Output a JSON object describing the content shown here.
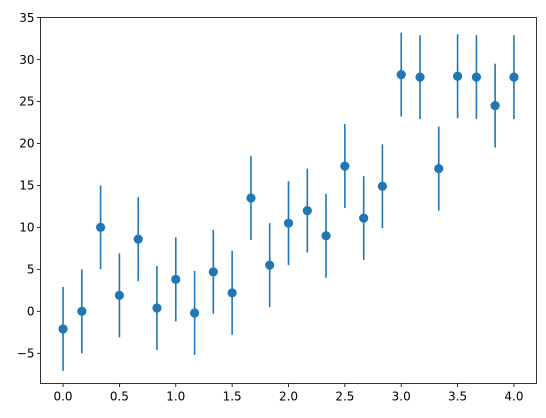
{
  "chart_data": {
    "type": "scatter",
    "error_bars": true,
    "title": "",
    "xlabel": "",
    "ylabel": "",
    "xlim": [
      -0.2,
      4.2
    ],
    "ylim": [
      -8.6,
      35
    ],
    "x_ticks": [
      0.0,
      0.5,
      1.0,
      1.5,
      2.0,
      2.5,
      3.0,
      3.5,
      4.0
    ],
    "x_tick_labels": [
      "0.0",
      "0.5",
      "1.0",
      "1.5",
      "2.0",
      "2.5",
      "3.0",
      "3.5",
      "4.0"
    ],
    "y_ticks": [
      -5,
      0,
      5,
      10,
      15,
      20,
      25,
      30,
      35
    ],
    "y_tick_labels": [
      "−5",
      "0",
      "5",
      "10",
      "15",
      "20",
      "25",
      "30",
      "35"
    ],
    "grid": false,
    "color": "#1f77b4",
    "series": [
      {
        "x": [
          0.0,
          0.167,
          0.333,
          0.5,
          0.667,
          0.833,
          1.0,
          1.167,
          1.333,
          1.5,
          1.667,
          1.833,
          2.0,
          2.167,
          2.333,
          2.5,
          2.667,
          2.833,
          3.0,
          3.167,
          3.333,
          3.5,
          3.667,
          3.833,
          4.0
        ],
        "y": [
          -2.1,
          0.0,
          10.0,
          1.9,
          8.6,
          0.4,
          3.8,
          -0.2,
          4.7,
          2.2,
          13.5,
          5.5,
          10.5,
          12.0,
          9.0,
          17.3,
          11.1,
          14.9,
          28.2,
          27.9,
          17.0,
          28.0,
          27.9,
          24.5,
          27.9
        ],
        "yerr": [
          5,
          5,
          5,
          5,
          5,
          5,
          5,
          5,
          5,
          5,
          5,
          5,
          5,
          5,
          5,
          5,
          5,
          5,
          5,
          5,
          5,
          5,
          5,
          5,
          5
        ]
      }
    ]
  }
}
